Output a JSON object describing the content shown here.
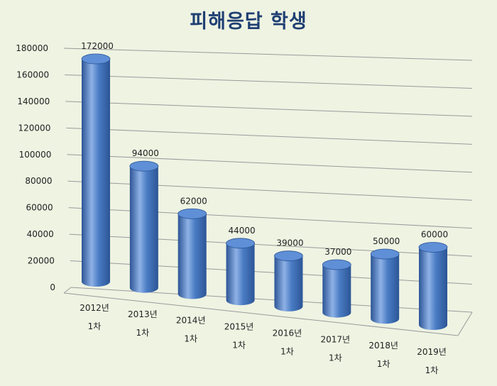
{
  "chart_data": {
    "type": "bar",
    "title": "피해응답 학생",
    "categories": [
      [
        "2012년",
        "1차"
      ],
      [
        "2013년",
        "1차"
      ],
      [
        "2014년",
        "1차"
      ],
      [
        "2015년",
        "1차"
      ],
      [
        "2016년",
        "1차"
      ],
      [
        "2017년",
        "1차"
      ],
      [
        "2018년",
        "1차"
      ],
      [
        "2019년",
        "1차"
      ]
    ],
    "values": [
      172000,
      94000,
      62000,
      44000,
      39000,
      37000,
      50000,
      60000
    ],
    "ylim": [
      0,
      180000
    ],
    "yticks": [
      0,
      20000,
      40000,
      60000,
      80000,
      100000,
      120000,
      140000,
      160000,
      180000
    ],
    "grid": true,
    "legend": "none",
    "colors": {
      "bar": "#4a7cc4",
      "bar_dark": "#2c5596",
      "bar_light": "#8fb2e6",
      "top": "#5f8fd6",
      "grid": "#9a9a9a",
      "background": "#eef3e2"
    }
  }
}
